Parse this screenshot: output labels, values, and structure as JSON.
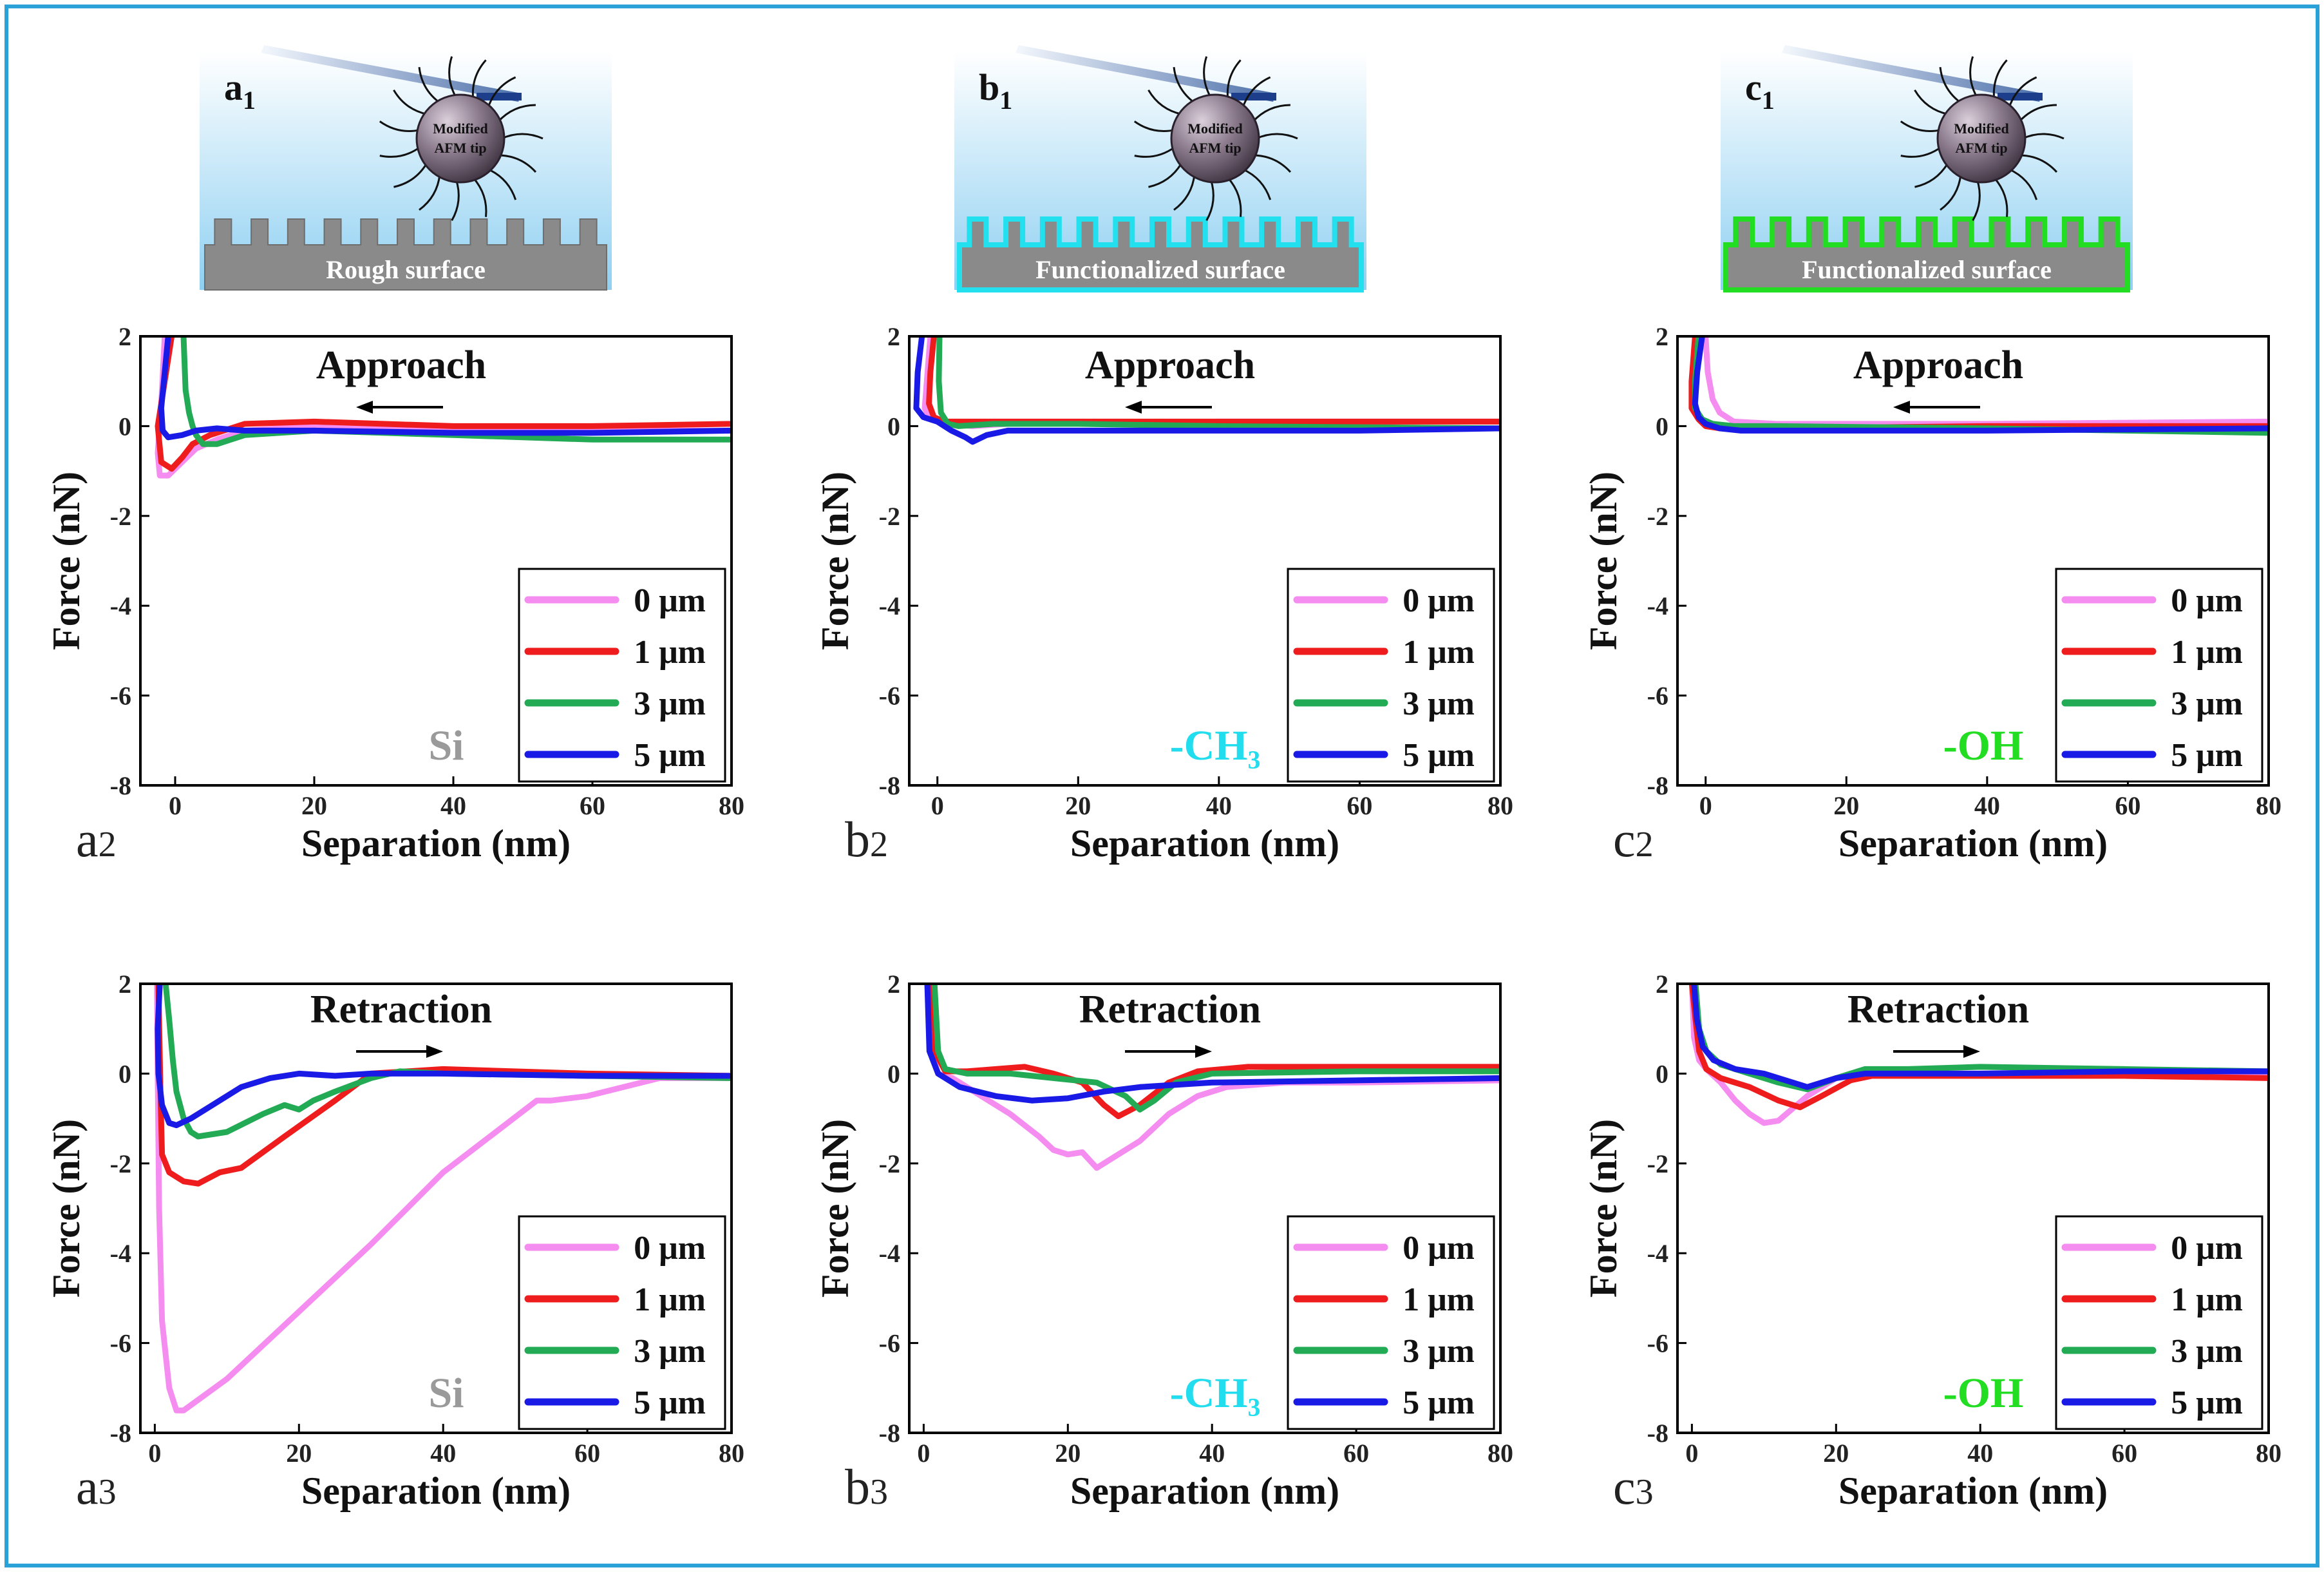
{
  "colors": {
    "border": "#2aa2d8",
    "series": {
      "0 μm": "#f58cf0",
      "1 μm": "#ee1c1c",
      "3 μm": "#22aa55",
      "5 μm": "#1a1ae6"
    },
    "surface_lines": {
      "a": "#8a8a8a",
      "b": "#22e0ee",
      "c": "#22dd22"
    },
    "substance_labels": {
      "a": "#9a9a9a",
      "b": "#22ddee",
      "c": "#22dd22"
    }
  },
  "schematics": [
    {
      "id": "a1",
      "label": "a",
      "sub": "1",
      "tip_text": [
        "Modified",
        "AFM tip"
      ],
      "surface_text": "Rough surface"
    },
    {
      "id": "b1",
      "label": "b",
      "sub": "1",
      "tip_text": [
        "Modified",
        "AFM tip"
      ],
      "surface_text": "Functionalized surface"
    },
    {
      "id": "c1",
      "label": "c",
      "sub": "1",
      "tip_text": [
        "Modified",
        "AFM tip"
      ],
      "surface_text": "Functionalized surface"
    }
  ],
  "chart_data": [
    {
      "id": "a2",
      "type": "line",
      "panel_label": "a",
      "panel_sub": "2",
      "title": "Approach",
      "direction": "left",
      "substance": "Si",
      "substance_color_key": "a",
      "xlabel": "Separation (nm)",
      "ylabel": "Force (nN)",
      "xlim": [
        -5,
        80
      ],
      "ylim": [
        -8,
        2
      ],
      "xticks": [
        0,
        20,
        40,
        60,
        80
      ],
      "yticks": [
        2,
        0,
        -2,
        -4,
        -6,
        -8
      ],
      "series": [
        {
          "name": "0 μm",
          "x": [
            -1.5,
            -2,
            -2.5,
            -2.2,
            -1,
            1,
            3,
            6,
            10,
            20,
            40,
            60,
            80
          ],
          "y": [
            2,
            0.5,
            -0.6,
            -1.1,
            -1.1,
            -0.8,
            -0.5,
            -0.3,
            -0.1,
            0,
            -0.1,
            -0.1,
            -0.1
          ]
        },
        {
          "name": "1 μm",
          "x": [
            -0.5,
            -1.5,
            -2.5,
            -2,
            -0.5,
            1,
            2.5,
            5,
            10,
            20,
            40,
            60,
            80
          ],
          "y": [
            2,
            1,
            0,
            -0.8,
            -0.95,
            -0.7,
            -0.4,
            -0.2,
            0.05,
            0.1,
            0,
            0,
            0.05
          ]
        },
        {
          "name": "3 μm",
          "x": [
            1.2,
            1.5,
            2,
            2.5,
            3,
            4,
            6,
            10,
            20,
            40,
            60,
            80
          ],
          "y": [
            2,
            0.8,
            0.3,
            0,
            -0.2,
            -0.4,
            -0.4,
            -0.2,
            -0.1,
            -0.2,
            -0.3,
            -0.3
          ]
        },
        {
          "name": "5 μm",
          "x": [
            -1,
            -1.5,
            -2,
            -1.8,
            -1,
            1,
            3,
            6,
            10,
            20,
            40,
            60,
            80
          ],
          "y": [
            2,
            1.2,
            0.4,
            -0.1,
            -0.25,
            -0.2,
            -0.1,
            -0.05,
            -0.1,
            -0.1,
            -0.15,
            -0.15,
            -0.1
          ]
        }
      ]
    },
    {
      "id": "b2",
      "type": "line",
      "panel_label": "b",
      "panel_sub": "2",
      "title": "Approach",
      "direction": "left",
      "substance": "-CH₃",
      "substance_color_key": "b",
      "xlabel": "Separation (nm)",
      "ylabel": "Force (nN)",
      "xlim": [
        -4,
        80
      ],
      "ylim": [
        -8,
        2
      ],
      "xticks": [
        0,
        20,
        40,
        60,
        80
      ],
      "yticks": [
        2,
        0,
        -2,
        -4,
        -6,
        -8
      ],
      "series": [
        {
          "name": "0 μm",
          "x": [
            -1,
            -1.5,
            -1.8,
            -1,
            1,
            5,
            10,
            40,
            80
          ],
          "y": [
            2,
            1,
            0.4,
            0.15,
            0.05,
            0,
            0.05,
            0.1,
            0.1
          ]
        },
        {
          "name": "1 μm",
          "x": [
            -0.5,
            -1,
            -1.2,
            -0.5,
            1,
            5,
            10,
            40,
            80
          ],
          "y": [
            2,
            1.2,
            0.5,
            0.2,
            0.1,
            0.1,
            0.1,
            0.1,
            0.1
          ]
        },
        {
          "name": "3 μm",
          "x": [
            0.3,
            0.2,
            0.5,
            1.5,
            3,
            8,
            20,
            40,
            80
          ],
          "y": [
            2,
            1,
            0.3,
            0.05,
            0,
            0.05,
            0.05,
            0,
            -0.05
          ]
        },
        {
          "name": "5 μm",
          "x": [
            -2.2,
            -2.8,
            -3,
            -2,
            0,
            2,
            4,
            5,
            7,
            10,
            20,
            40,
            60,
            80
          ],
          "y": [
            2,
            1.2,
            0.4,
            0.2,
            0.1,
            -0.1,
            -0.25,
            -0.35,
            -0.2,
            -0.1,
            -0.1,
            -0.1,
            -0.1,
            -0.05
          ]
        }
      ]
    },
    {
      "id": "c2",
      "type": "line",
      "panel_label": "c",
      "panel_sub": "2",
      "title": "Approach",
      "direction": "left",
      "substance": "-OH",
      "substance_color_key": "c",
      "xlabel": "Separation (nm)",
      "ylabel": "Force (nN)",
      "xlim": [
        -4,
        80
      ],
      "ylim": [
        -8,
        2
      ],
      "xticks": [
        0,
        20,
        40,
        60,
        80
      ],
      "yticks": [
        2,
        0,
        -2,
        -4,
        -6,
        -8
      ],
      "series": [
        {
          "name": "0 μm",
          "x": [
            0,
            0.3,
            1,
            2,
            4,
            10,
            40,
            80
          ],
          "y": [
            2,
            1.2,
            0.6,
            0.3,
            0.1,
            0.05,
            0.05,
            0.1
          ]
        },
        {
          "name": "1 μm",
          "x": [
            -1.5,
            -2,
            -2,
            -1,
            0,
            2,
            10,
            40,
            80
          ],
          "y": [
            2,
            1,
            0.4,
            0.15,
            0,
            -0.05,
            -0.05,
            0,
            0
          ]
        },
        {
          "name": "3 μm",
          "x": [
            -1,
            -1.5,
            -1.5,
            -0.5,
            1,
            4,
            10,
            40,
            80
          ],
          "y": [
            2,
            1,
            0.4,
            0.15,
            0.05,
            0,
            0,
            -0.05,
            -0.15
          ]
        },
        {
          "name": "5 μm",
          "x": [
            -0.5,
            -1.2,
            -1.5,
            -1,
            0,
            2,
            5,
            10,
            40,
            80
          ],
          "y": [
            2,
            1.2,
            0.5,
            0.2,
            0.05,
            -0.05,
            -0.1,
            -0.1,
            -0.1,
            -0.05
          ]
        }
      ]
    },
    {
      "id": "a3",
      "type": "line",
      "panel_label": "a",
      "panel_sub": "3",
      "title": "Retraction",
      "direction": "right",
      "substance": "Si",
      "substance_color_key": "a",
      "xlabel": "Separation (nm)",
      "ylabel": "Force (nN)",
      "xlim": [
        -2,
        80
      ],
      "ylim": [
        -8,
        2
      ],
      "xticks": [
        0,
        20,
        40,
        60,
        80
      ],
      "yticks": [
        2,
        0,
        -2,
        -4,
        -6,
        -8
      ],
      "series": [
        {
          "name": "0 μm",
          "x": [
            0.3,
            0.4,
            0.6,
            1,
            2,
            3,
            4,
            10,
            20,
            30,
            40,
            53,
            55,
            60,
            70,
            80
          ],
          "y": [
            2,
            0,
            -3,
            -5.5,
            -7,
            -7.5,
            -7.5,
            -6.8,
            -5.3,
            -3.8,
            -2.2,
            -0.6,
            -0.6,
            -0.5,
            -0.1,
            -0.1
          ]
        },
        {
          "name": "1 μm",
          "x": [
            0.5,
            0.8,
            1,
            2,
            4,
            6,
            9,
            12,
            18,
            25,
            30,
            40,
            60,
            80
          ],
          "y": [
            2,
            -0.5,
            -1.8,
            -2.2,
            -2.4,
            -2.45,
            -2.2,
            -2.1,
            -1.4,
            -0.6,
            0,
            0.1,
            0,
            -0.05
          ]
        },
        {
          "name": "3 μm",
          "x": [
            1.5,
            2,
            2.5,
            3,
            4,
            5,
            6,
            10,
            15,
            18,
            20,
            22,
            25,
            30,
            34,
            40,
            60,
            80
          ],
          "y": [
            2,
            1.2,
            0.3,
            -0.4,
            -1,
            -1.3,
            -1.4,
            -1.3,
            -0.9,
            -0.7,
            -0.8,
            -0.6,
            -0.4,
            -0.1,
            0.05,
            0,
            -0.05,
            -0.1
          ]
        },
        {
          "name": "5 μm",
          "x": [
            0.7,
            0.4,
            0.5,
            1,
            2,
            3,
            5,
            8,
            12,
            16,
            20,
            25,
            30,
            40,
            60,
            80
          ],
          "y": [
            2,
            1,
            0,
            -0.7,
            -1.1,
            -1.15,
            -1,
            -0.7,
            -0.3,
            -0.1,
            0,
            -0.05,
            0,
            0,
            -0.05,
            -0.05
          ]
        }
      ]
    },
    {
      "id": "b3",
      "type": "line",
      "panel_label": "b",
      "panel_sub": "3",
      "title": "Retraction",
      "direction": "right",
      "substance": "-CH₃",
      "substance_color_key": "b",
      "xlabel": "Separation (nm)",
      "ylabel": "Force (nN)",
      "xlim": [
        -2,
        80
      ],
      "ylim": [
        -8,
        2
      ],
      "xticks": [
        0,
        20,
        40,
        60,
        80
      ],
      "yticks": [
        2,
        0,
        -2,
        -4,
        -6,
        -8
      ],
      "series": [
        {
          "name": "0 μm",
          "x": [
            0.5,
            1,
            2,
            4,
            8,
            12,
            16,
            18,
            20,
            22,
            24,
            26,
            30,
            34,
            38,
            42,
            50,
            60,
            80
          ],
          "y": [
            2,
            0.5,
            0,
            -0.1,
            -0.5,
            -0.9,
            -1.4,
            -1.7,
            -1.8,
            -1.75,
            -2.1,
            -1.9,
            -1.5,
            -0.9,
            -0.5,
            -0.3,
            -0.2,
            -0.2,
            -0.15
          ]
        },
        {
          "name": "1 μm",
          "x": [
            1,
            1.5,
            3,
            6,
            10,
            14,
            18,
            22,
            25,
            27,
            30,
            34,
            38,
            45,
            60,
            80
          ],
          "y": [
            2,
            0.5,
            0.05,
            0.05,
            0.1,
            0.15,
            0,
            -0.2,
            -0.7,
            -0.95,
            -0.7,
            -0.2,
            0.05,
            0.15,
            0.15,
            0.15
          ]
        },
        {
          "name": "3 μm",
          "x": [
            1.5,
            2,
            3,
            6,
            12,
            18,
            24,
            28,
            30,
            32,
            35,
            40,
            60,
            80
          ],
          "y": [
            2,
            0.5,
            0.1,
            0,
            0,
            -0.1,
            -0.2,
            -0.5,
            -0.8,
            -0.6,
            -0.2,
            0,
            0.05,
            0.05
          ]
        },
        {
          "name": "5 μm",
          "x": [
            0.5,
            0.8,
            2,
            5,
            10,
            15,
            20,
            25,
            30,
            40,
            60,
            80
          ],
          "y": [
            2,
            0.5,
            0,
            -0.3,
            -0.5,
            -0.6,
            -0.55,
            -0.4,
            -0.3,
            -0.2,
            -0.15,
            -0.1
          ]
        }
      ]
    },
    {
      "id": "c3",
      "type": "line",
      "panel_label": "c",
      "panel_sub": "3",
      "title": "Retraction",
      "direction": "right",
      "substance": "-OH",
      "substance_color_key": "c",
      "xlabel": "Separation (nm)",
      "ylabel": "Force (nN)",
      "xlim": [
        -2,
        80
      ],
      "ylim": [
        -8,
        2
      ],
      "xticks": [
        0,
        20,
        40,
        60,
        80
      ],
      "yticks": [
        2,
        0,
        -2,
        -4,
        -6,
        -8
      ],
      "series": [
        {
          "name": "0 μm",
          "x": [
            0,
            0.3,
            1,
            2,
            4,
            6,
            8,
            10,
            12,
            16,
            20,
            24,
            40,
            60,
            80
          ],
          "y": [
            2,
            0.8,
            0.3,
            0.1,
            -0.2,
            -0.6,
            -0.9,
            -1.1,
            -1.05,
            -0.5,
            -0.1,
            0,
            0,
            0,
            0
          ]
        },
        {
          "name": "1 μm",
          "x": [
            0,
            0.5,
            1,
            2,
            4,
            8,
            12,
            15,
            18,
            22,
            25,
            40,
            60,
            80
          ],
          "y": [
            2,
            1.2,
            0.5,
            0.1,
            -0.1,
            -0.3,
            -0.6,
            -0.75,
            -0.5,
            -0.15,
            -0.05,
            -0.05,
            -0.05,
            -0.1
          ]
        },
        {
          "name": "3 μm",
          "x": [
            0.5,
            1,
            2,
            4,
            8,
            12,
            16,
            20,
            24,
            30,
            40,
            60,
            80
          ],
          "y": [
            2,
            1,
            0.5,
            0.2,
            0,
            -0.2,
            -0.35,
            -0.1,
            0.1,
            0.1,
            0.15,
            0.1,
            0.05
          ]
        },
        {
          "name": "5 μm",
          "x": [
            0.3,
            0.7,
            1.5,
            3,
            6,
            10,
            14,
            16,
            20,
            24,
            30,
            40,
            60,
            80
          ],
          "y": [
            2,
            1.2,
            0.6,
            0.3,
            0.1,
            0,
            -0.2,
            -0.3,
            -0.1,
            0,
            0,
            0,
            0.05,
            0.05
          ]
        }
      ]
    }
  ]
}
